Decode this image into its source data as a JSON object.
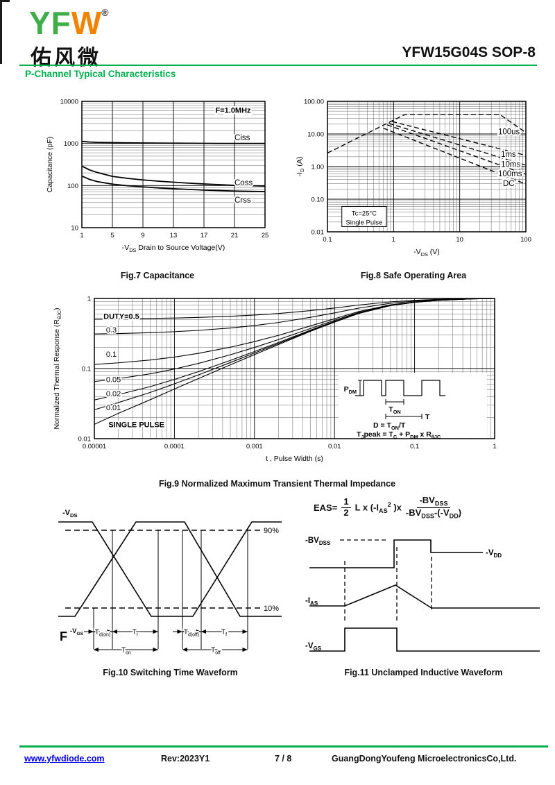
{
  "header": {
    "logo_main": "YF",
    "logo_accent": "W",
    "registered": "®",
    "logo_cn": "佑风微",
    "part_number": "YFW15G04S SOP-8",
    "section_title": "P-Channel Typical Characteristics"
  },
  "footer": {
    "website": "www.yfwdiode.com",
    "revision": "Rev:2023Y1",
    "page": "7 / 8",
    "company": "GuangDongYoufeng MicroelectronicsCo,Ltd."
  },
  "colors": {
    "green": "#00B050",
    "logo_green": "#3FAE49",
    "logo_orange": "#F08300",
    "link_blue": "#0000EE",
    "ink": "#000000"
  },
  "chart_data": [
    {
      "id": "fig7",
      "type": "line",
      "caption": "Fig.7 Capacitance",
      "xlabel": "-V~DS~ Drain to Source Voltage(V)",
      "ylabel": "Capacitance (pF)",
      "xscale": "linear",
      "yscale": "log",
      "xlim": [
        1,
        25
      ],
      "ylim": [
        10,
        10000
      ],
      "xticks": [
        1,
        5,
        9,
        13,
        17,
        21,
        25
      ],
      "xtick_labels": [
        "1",
        "5",
        "9",
        "13",
        "17",
        "21",
        "25"
      ],
      "yticks": [
        10,
        100,
        1000,
        10000
      ],
      "ytick_labels": [
        "10",
        "100",
        "1000",
        "10000"
      ],
      "annotations": [
        {
          "text": "F=1.0MHz",
          "at": [
            18.5,
            6200
          ],
          "bold": true
        }
      ],
      "series": [
        {
          "name": "Ciss",
          "label_at": [
            21,
            1400
          ],
          "x": [
            1,
            2,
            3,
            5,
            7,
            9,
            11,
            13,
            15,
            17,
            19,
            21,
            23,
            25
          ],
          "y": [
            1120,
            1080,
            1060,
            1045,
            1035,
            1025,
            1020,
            1015,
            1010,
            1005,
            1000,
            1000,
            1000,
            1000
          ]
        },
        {
          "name": "Coss",
          "label_at": [
            21,
            118
          ],
          "x": [
            1,
            2,
            3,
            5,
            7,
            9,
            11,
            13,
            15,
            17,
            19,
            21,
            23,
            25
          ],
          "y": [
            290,
            235,
            205,
            165,
            148,
            136,
            127,
            120,
            114,
            109,
            105,
            101,
            99,
            97
          ]
        },
        {
          "name": "Crss",
          "label_at": [
            21,
            46
          ],
          "x": [
            1,
            2,
            3,
            5,
            7,
            9,
            11,
            13,
            15,
            17,
            19,
            21,
            23,
            25
          ],
          "y": [
            168,
            140,
            124,
            108,
            99,
            93,
            88,
            84,
            81,
            78,
            76,
            74,
            73,
            72
          ]
        }
      ]
    },
    {
      "id": "fig8",
      "type": "line",
      "caption": "Fig.8 Safe Operating Area",
      "xlabel": "-V~DS~ (V)",
      "ylabel": "-I~D~ (A)",
      "xscale": "log",
      "yscale": "log",
      "xlim": [
        0.1,
        100
      ],
      "ylim": [
        0.01,
        100
      ],
      "xticks": [
        0.1,
        1,
        10,
        100
      ],
      "xtick_labels": [
        "0.1",
        "1",
        "10",
        "100"
      ],
      "yticks": [
        0.01,
        0.1,
        1,
        10,
        100
      ],
      "ytick_labels": [
        "0.01",
        "0.10",
        "1.00",
        "10.00",
        "100.00"
      ],
      "dashed": true,
      "box_annotation": {
        "lines": [
          "Tc=25°C",
          "Single Pulse"
        ],
        "box": [
          0.165,
          0.0145,
          0.78,
          0.06
        ]
      },
      "series": [
        {
          "name": "100us",
          "label_at": [
            38,
            12
          ],
          "x": [
            0.1,
            1.5,
            40,
            100
          ],
          "y": [
            2.6,
            40,
            40,
            11
          ]
        },
        {
          "name": "1ms",
          "label_at": [
            42,
            2.4
          ],
          "x": [
            0.95,
            100
          ],
          "y": [
            24,
            2.2
          ]
        },
        {
          "name": "10ms",
          "label_at": [
            42,
            1.18
          ],
          "x": [
            0.85,
            100
          ],
          "y": [
            21,
            1.1
          ]
        },
        {
          "name": "100ms",
          "label_at": [
            38,
            0.62
          ],
          "x": [
            0.8,
            100
          ],
          "y": [
            19,
            0.58
          ]
        },
        {
          "name": "DC",
          "label_at": [
            45,
            0.31
          ],
          "x": [
            0.7,
            100
          ],
          "y": [
            15,
            0.29
          ]
        }
      ]
    },
    {
      "id": "fig9",
      "type": "line",
      "caption": "Fig.9 Normalized Maximum Transient Thermal Impedance",
      "xlabel": "t , Pulse Width (s)",
      "ylabel": "Normalized Thermal Response (R~θJC~)",
      "xscale": "log",
      "yscale": "log",
      "xlim": [
        1e-05,
        1
      ],
      "ylim": [
        0.01,
        1
      ],
      "xticks": [
        1e-05,
        0.0001,
        0.001,
        0.01,
        0.1,
        1
      ],
      "xtick_labels": [
        "0.00001",
        "0.0001",
        "0.001",
        "0.01",
        "0.1",
        "1"
      ],
      "yticks": [
        0.01,
        0.1,
        1
      ],
      "ytick_labels": [
        "0.01",
        "0.1",
        "1"
      ],
      "duty_cycles": [
        0.5,
        0.3,
        0.1,
        0.05,
        0.02,
        0.01
      ],
      "single_pulse": {
        "t": [
          1e-05,
          2e-05,
          5e-05,
          0.0001,
          0.0002,
          0.0005,
          0.001,
          0.002,
          0.005,
          0.01,
          0.02,
          0.05,
          0.1,
          0.2,
          0.5,
          1
        ],
        "r": [
          0.016,
          0.023,
          0.036,
          0.051,
          0.072,
          0.113,
          0.158,
          0.22,
          0.34,
          0.46,
          0.61,
          0.79,
          0.88,
          0.94,
          0.985,
          1.0
        ]
      },
      "labels": [
        {
          "text": "DUTY=0.5",
          "at": [
            1.3e-05,
            0.56
          ],
          "bold": true
        },
        {
          "text": "0.3",
          "at": [
            1.4e-05,
            0.36
          ],
          "bold": false
        },
        {
          "text": "0.1",
          "at": [
            1.4e-05,
            0.162
          ],
          "bold": false
        },
        {
          "text": "0.05",
          "at": [
            1.4e-05,
            0.07
          ],
          "bold": false
        },
        {
          "text": "0.02",
          "at": [
            1.4e-05,
            0.044
          ],
          "bold": false
        },
        {
          "text": "0.01",
          "at": [
            1.4e-05,
            0.028
          ],
          "bold": false
        },
        {
          "text": "SINGLE PULSE",
          "at": [
            1.5e-05,
            0.016
          ],
          "bold": true
        }
      ],
      "inset": {
        "pdm": "P~DM~",
        "ton": "T~ON~",
        "t_label": "T",
        "eq1": "D = T~ON~/T",
        "eq2": "T~J~peak = T~C~ + P~DM~ x R~θJC~"
      }
    }
  ],
  "fig10": {
    "caption": "Fig.10 Switching Time Waveform",
    "labels": {
      "vds": "-V~DS~",
      "p90": "90%",
      "p10": "10%",
      "f": "F",
      "vgs": "-V~GS~",
      "td_on": "T~d(on)~",
      "tr": "T~r~",
      "td_off": "T~d(off)~",
      "tf": "T~f~",
      "t_on": "T~on~",
      "t_off": "T~off~"
    }
  },
  "fig11": {
    "caption": "Fig.11 Unclamped Inductive Waveform",
    "formula": {
      "lhs": "EAS=",
      "f1n": "1",
      "f1d": "2",
      "mid": "L x (-I~AS~^2^ )x",
      "f2n": "-BV~DSS~",
      "f2d": "-BV~DSS~-(-V~DD~)"
    },
    "labels": {
      "bvdss": "-BV~DSS~",
      "vdd": "-V~DD~",
      "ias": "-I~AS~",
      "vgs": "-V~GS~"
    }
  }
}
